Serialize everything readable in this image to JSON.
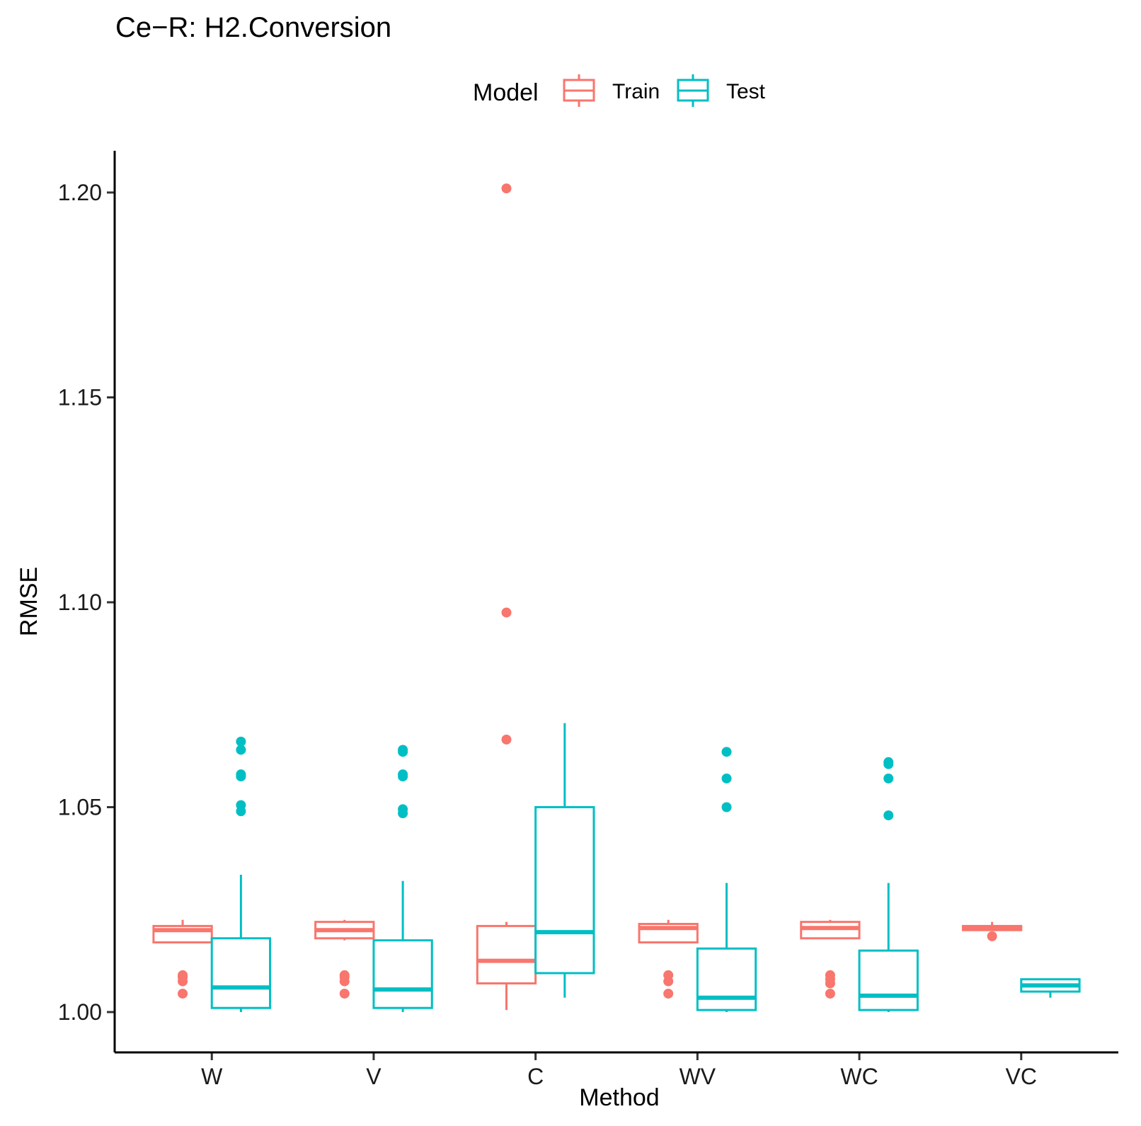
{
  "chart_data": {
    "type": "boxplot",
    "title": "Ce−R: H2.Conversion",
    "xlabel": "Method",
    "ylabel": "RMSE",
    "ylim": [
      0.99,
      1.21
    ],
    "yticks": [
      1.0,
      1.05,
      1.1,
      1.15,
      1.2
    ],
    "ytick_labels": [
      "1.00",
      "1.05",
      "1.10",
      "1.15",
      "1.20"
    ],
    "categories": [
      "W",
      "V",
      "C",
      "WV",
      "WC",
      "VC"
    ],
    "legend": {
      "title": "Model",
      "position": "top",
      "entries": [
        {
          "name": "Train",
          "color": "#F8766D"
        },
        {
          "name": "Test",
          "color": "#00BFC4"
        }
      ]
    },
    "series": [
      {
        "name": "Train",
        "color": "#F8766D",
        "boxes": [
          {
            "category": "W",
            "min": 1.017,
            "q1": 1.017,
            "median": 1.02,
            "q3": 1.021,
            "max": 1.0225,
            "outliers": [
              1.009,
              1.0085,
              1.0075,
              1.0045
            ]
          },
          {
            "category": "V",
            "min": 1.0175,
            "q1": 1.018,
            "median": 1.02,
            "q3": 1.022,
            "max": 1.0225,
            "outliers": [
              1.009,
              1.0085,
              1.0075,
              1.0045
            ]
          },
          {
            "category": "C",
            "min": 1.0005,
            "q1": 1.007,
            "median": 1.0125,
            "q3": 1.021,
            "max": 1.022,
            "outliers": [
              1.201,
              1.0975,
              1.0665
            ]
          },
          {
            "category": "WV",
            "min": 1.017,
            "q1": 1.017,
            "median": 1.0205,
            "q3": 1.0215,
            "max": 1.0225,
            "outliers": [
              1.009,
              1.0075,
              1.0045
            ]
          },
          {
            "category": "WC",
            "min": 1.018,
            "q1": 1.018,
            "median": 1.0205,
            "q3": 1.022,
            "max": 1.0225,
            "outliers": [
              1.009,
              1.008,
              1.007,
              1.0045
            ]
          },
          {
            "category": "VC",
            "min": 1.02,
            "q1": 1.02,
            "median": 1.0205,
            "q3": 1.021,
            "max": 1.022,
            "outliers": [
              1.0185
            ]
          }
        ]
      },
      {
        "name": "Test",
        "color": "#00BFC4",
        "boxes": [
          {
            "category": "W",
            "min": 1.0,
            "q1": 1.001,
            "median": 1.006,
            "q3": 1.018,
            "max": 1.0335,
            "outliers": [
              1.066,
              1.064,
              1.058,
              1.0575,
              1.0505,
              1.049
            ]
          },
          {
            "category": "V",
            "min": 1.0,
            "q1": 1.001,
            "median": 1.0055,
            "q3": 1.0175,
            "max": 1.032,
            "outliers": [
              1.064,
              1.0635,
              1.058,
              1.0575,
              1.0495,
              1.0485
            ]
          },
          {
            "category": "C",
            "min": 1.0035,
            "q1": 1.0095,
            "median": 1.0195,
            "q3": 1.05,
            "max": 1.0705,
            "outliers": []
          },
          {
            "category": "WV",
            "min": 1.0,
            "q1": 1.0005,
            "median": 1.0035,
            "q3": 1.0155,
            "max": 1.0315,
            "outliers": [
              1.0635,
              1.057,
              1.05
            ]
          },
          {
            "category": "WC",
            "min": 1.0,
            "q1": 1.0005,
            "median": 1.004,
            "q3": 1.015,
            "max": 1.0315,
            "outliers": [
              1.061,
              1.0605,
              1.057,
              1.048
            ]
          },
          {
            "category": "VC",
            "min": 1.0035,
            "q1": 1.005,
            "median": 1.0065,
            "q3": 1.008,
            "max": 1.008,
            "outliers": []
          }
        ]
      }
    ]
  }
}
